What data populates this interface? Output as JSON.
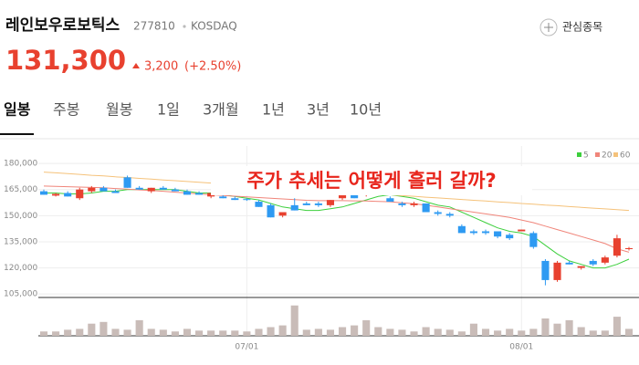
{
  "header": {
    "name": "레인보우로보틱스",
    "code": "277810",
    "market": "KOSDAQ",
    "price": "131,300",
    "change": "3,200",
    "change_pct": "(+2.50%)",
    "watch": "관심종목",
    "tabs": [
      "일봉",
      "주봉",
      "월봉",
      "1일",
      "3개월",
      "1년",
      "3년",
      "10년"
    ]
  },
  "chart_data": {
    "type": "candlestick",
    "annotation": "주가 추세는 어떻게 흘러 갈까?",
    "categories": [
      null,
      null,
      null,
      null,
      null,
      null,
      null,
      null,
      null,
      null,
      null,
      null,
      null,
      null,
      null,
      null,
      null,
      "07/01",
      null,
      null,
      null,
      null,
      null,
      null,
      null,
      null,
      null,
      null,
      null,
      null,
      null,
      null,
      null,
      null,
      null,
      null,
      null,
      null,
      null,
      null,
      "08/01",
      null,
      null,
      null,
      null,
      null,
      null,
      null,
      null,
      null
    ],
    "open": [
      164000,
      161500,
      163000,
      160000,
      164000,
      166000,
      164000,
      172000,
      166000,
      164000,
      166000,
      165000,
      164000,
      163000,
      161000,
      161000,
      160000,
      159500,
      158000,
      156000,
      150000,
      156000,
      157000,
      157000,
      156000,
      160000,
      163000,
      162000,
      164000,
      160000,
      157000,
      156000,
      157000,
      152000,
      151000,
      144000,
      141000,
      141000,
      141000,
      139000,
      141000,
      140000,
      124000,
      113000,
      123000,
      120000,
      124000,
      123000,
      127000,
      131000
    ],
    "high": [
      165000,
      163000,
      164000,
      166000,
      167000,
      167000,
      165000,
      173000,
      167000,
      166000,
      167000,
      166000,
      165000,
      164000,
      163000,
      162000,
      161000,
      160000,
      159000,
      157000,
      152000,
      160000,
      158000,
      158000,
      159000,
      163000,
      164000,
      165000,
      165000,
      161000,
      158000,
      158000,
      157000,
      153000,
      152000,
      145000,
      142000,
      142000,
      141000,
      140000,
      142000,
      141000,
      125000,
      124000,
      124000,
      121000,
      125000,
      127000,
      139000,
      132000
    ],
    "low": [
      162000,
      161000,
      161000,
      159000,
      163000,
      164000,
      163000,
      166000,
      165000,
      163000,
      165000,
      164000,
      162000,
      162000,
      160000,
      160000,
      159000,
      158500,
      155000,
      149000,
      149000,
      153000,
      156000,
      155000,
      155000,
      159000,
      160000,
      161000,
      162000,
      158000,
      155000,
      155000,
      152000,
      150000,
      149000,
      140000,
      139000,
      139000,
      137000,
      136000,
      141000,
      131000,
      110000,
      112000,
      122000,
      119000,
      121000,
      122000,
      126000,
      130000
    ],
    "close": [
      162000,
      162500,
      161000,
      165000,
      166000,
      164000,
      163000,
      166000,
      165000,
      166000,
      165000,
      164000,
      162000,
      162000,
      163000,
      160000,
      159000,
      159000,
      155000,
      149000,
      152000,
      153000,
      156000,
      156000,
      159000,
      163000,
      160000,
      164000,
      163000,
      158000,
      156000,
      157000,
      152000,
      151000,
      150000,
      140000,
      140000,
      140000,
      138000,
      137000,
      142000,
      132000,
      113000,
      123000,
      122000,
      121000,
      122000,
      126000,
      137000,
      131300
    ],
    "volume": [
      5,
      5,
      7,
      8,
      14,
      16,
      8,
      7,
      18,
      8,
      7,
      5,
      8,
      6,
      6,
      6,
      6,
      5,
      8,
      10,
      12,
      35,
      7,
      8,
      7,
      10,
      12,
      18,
      10,
      8,
      7,
      5,
      10,
      8,
      7,
      5,
      14,
      8,
      6,
      8,
      6,
      8,
      20,
      14,
      18,
      10,
      6,
      6,
      22,
      8
    ],
    "up_color": "#e8412f",
    "down_color": "#2e9af2",
    "volume_color": "#c9bcb8",
    "vlim": [
      0,
      40
    ],
    "ylim": [
      103000,
      190000
    ],
    "yticks": [
      {
        "value": 105000,
        "label": "105,000"
      },
      {
        "value": 120000,
        "label": "120,000"
      },
      {
        "value": 135000,
        "label": "135,000"
      },
      {
        "value": 150000,
        "label": "150,000"
      },
      {
        "value": 165000,
        "label": "165,000"
      },
      {
        "value": 180000,
        "label": "180,000"
      }
    ],
    "grid": true,
    "series": [
      {
        "name": "5",
        "color": "#3ccf3c",
        "values": [
          163000,
          163000,
          162500,
          162500,
          163000,
          164000,
          164000,
          165000,
          165000,
          165000,
          165000,
          165000,
          164000,
          163000,
          163000,
          162000,
          161000,
          160000,
          159000,
          157000,
          155000,
          154000,
          153000,
          153000,
          154000,
          155000,
          157000,
          159000,
          161000,
          162000,
          161000,
          160000,
          158000,
          156000,
          155000,
          152000,
          149000,
          146000,
          143000,
          141000,
          140000,
          138000,
          133000,
          128000,
          124000,
          122000,
          120000,
          120000,
          122000,
          125000
        ]
      },
      {
        "name": "20",
        "color": "#f0857a",
        "values": [
          167000,
          166800,
          166600,
          166400,
          166200,
          166000,
          165600,
          165200,
          164800,
          164400,
          164000,
          163500,
          163000,
          162500,
          162000,
          161600,
          161200,
          160800,
          160400,
          160000,
          159600,
          159200,
          158800,
          158600,
          158600,
          158600,
          158500,
          158400,
          158200,
          158000,
          157400,
          156800,
          156000,
          155000,
          154000,
          153000,
          152000,
          151000,
          150000,
          149000,
          147500,
          146000,
          144000,
          142000,
          140000,
          138000,
          136000,
          134000,
          131000,
          129000
        ]
      },
      {
        "name": "60",
        "color": "#f5c27a",
        "values": [
          175000,
          174600,
          174100,
          173700,
          173200,
          172800,
          172300,
          171900,
          171400,
          171000,
          170500,
          170100,
          169600,
          169200,
          168700,
          168300,
          167800,
          167400,
          166900,
          166500,
          166000,
          165600,
          165100,
          164700,
          164200,
          163800,
          163300,
          162900,
          162400,
          162000,
          161500,
          161100,
          160600,
          160200,
          159700,
          159300,
          158800,
          158400,
          157900,
          157500,
          157000,
          156600,
          156100,
          155700,
          155200,
          154800,
          154300,
          153900,
          153400,
          153000
        ]
      }
    ]
  }
}
